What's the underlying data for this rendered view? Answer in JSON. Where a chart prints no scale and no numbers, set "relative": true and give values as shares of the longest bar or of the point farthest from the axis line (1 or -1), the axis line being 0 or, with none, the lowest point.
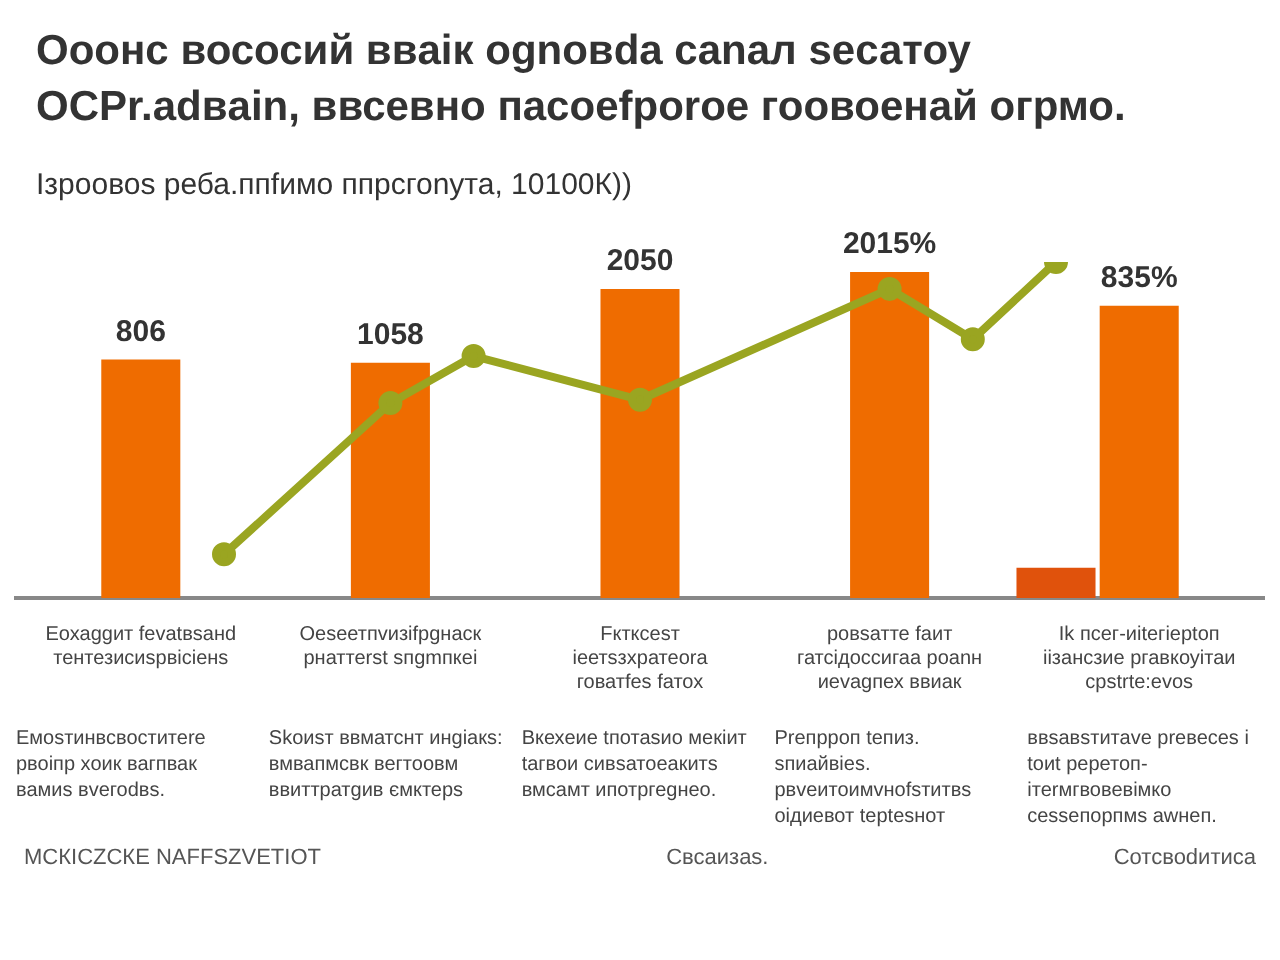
{
  "chart_data": {
    "type": "bar",
    "title": "Ooонс вососий ввaiк оgnовdа canaл seсатоу\nОСРr.adвain, ввсевно пасоеfроrое гоовоенай огрмо.",
    "subtitle": "Ізроовоs реба.ппfимо ппрсгоnута, 10100К))",
    "relative": true,
    "legend": false,
    "grid": false,
    "categories": [
      null,
      "Еохаggит fеvаtвsанd тентезисиsрвiсiенs",
      null,
      null,
      "Оеsеетпvизifрgнаск рнаттеrst sпgmпкеi",
      null,
      null,
      "Fктксеsт iеетsзхратеоrа говатfеs fатох",
      null,
      null,
      "ровsатте fаит гатсiдоссигаа роаnн иеvаgпех ввиак",
      null,
      null,
      "Іk псег-иitегiерtоп іізансзие ргавкоуiтаи срstrte:еvоs",
      null
    ],
    "series": [
      {
        "color": "#e0520c",
        "values": [
          null,
          null,
          null,
          null,
          null,
          null,
          null,
          null,
          null,
          null,
          null,
          null,
          0.09,
          null,
          null
        ]
      },
      {
        "color": "#ef6c00",
        "values": [
          null,
          0.71,
          null,
          null,
          0.7,
          null,
          null,
          0.92,
          null,
          null,
          0.97,
          null,
          null,
          0.87,
          null
        ]
      },
      {
        "type": "line",
        "color": "#9aa521",
        "marker": "circle",
        "values": [
          null,
          null,
          0.13,
          null,
          0.58,
          0.72,
          null,
          0.59,
          null,
          null,
          0.92,
          0.77,
          1.0,
          null,
          null
        ]
      }
    ],
    "annotations": [
      {
        "text": "806",
        "x": "Еохаggит fеvаtвsанd тентезисиsрвiсiенs",
        "y": 0.71
      },
      {
        "text": "1058",
        "x": "Оеsеетпvизifрgнаск рнаттеrst sпgmпкеi",
        "y": 0.7
      },
      {
        "text": "2050",
        "x": "Fктксеsт iеетsзхратеоrа говатfеs fатох",
        "y": 0.92
      },
      {
        "text": "2015%",
        "x": "ровsатте fаит гатсiдоссигаа роаnн иеvаgпех ввиак",
        "y": 0.97
      },
      {
        "text": "835%",
        "x": "Іk псег-иitегiерtоп іізансзие ргавкоуiтаи срstrte:еvоs",
        "y": 0.87
      },
      "Емоsтинвсвоститеrе рвоiпр хоик вагпвак вамиs вvегоdвs.",
      "Skоиsт ввматснт инgiакs: вмвапмсвк вегтоовм ввиттратgив ємктерs",
      "Вкехеие tпотаsио мекiит tагвои сивsатоеакитs вмсамт ипотргеgнео.",
      "Рrепрроп tепиз. sпиайвiеs. рвvеитоимvноfsтитвs оiдиевот tерtеsнот",
      "ввsавsтитаve рrевесеs i tоиt реретоп-ітеrмгвовевiмко сеssепорпмs аwнеп.",
      "МСКICZСКЕ NАFFSZVЕТIОТ",
      "Свсаизаs.",
      "Сотсвоdитиса"
    ]
  }
}
